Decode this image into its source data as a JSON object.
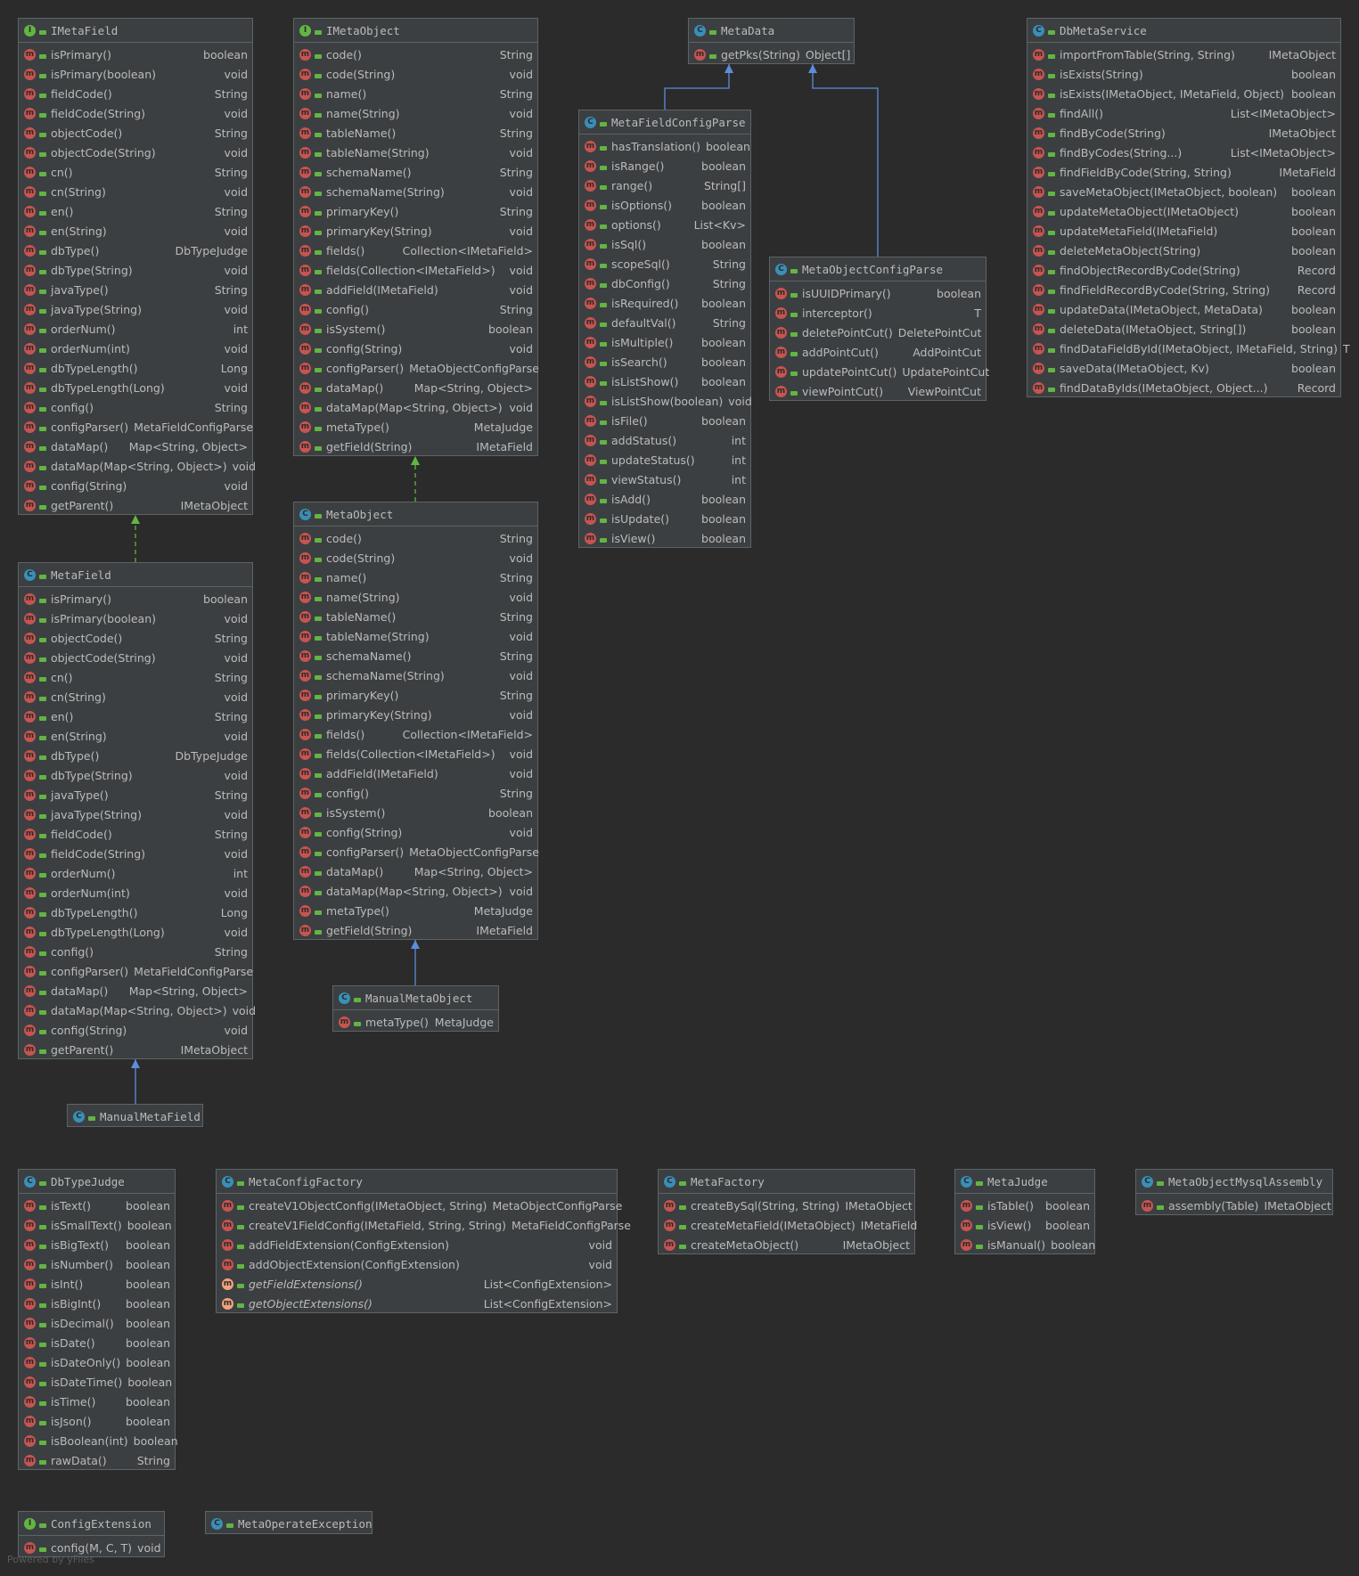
{
  "boxes": [
    {
      "id": "IMetaField",
      "kind": "i",
      "title": "IMetaField",
      "members": [
        [
          "isPrimary()",
          "boolean"
        ],
        [
          "isPrimary(boolean)",
          "void"
        ],
        [
          "fieldCode()",
          "String"
        ],
        [
          "fieldCode(String)",
          "void"
        ],
        [
          "objectCode()",
          "String"
        ],
        [
          "objectCode(String)",
          "void"
        ],
        [
          "cn()",
          "String"
        ],
        [
          "cn(String)",
          "void"
        ],
        [
          "en()",
          "String"
        ],
        [
          "en(String)",
          "void"
        ],
        [
          "dbType()",
          "DbTypeJudge"
        ],
        [
          "dbType(String)",
          "void"
        ],
        [
          "javaType()",
          "String"
        ],
        [
          "javaType(String)",
          "void"
        ],
        [
          "orderNum()",
          "int"
        ],
        [
          "orderNum(int)",
          "void"
        ],
        [
          "dbTypeLength()",
          "Long"
        ],
        [
          "dbTypeLength(Long)",
          "void"
        ],
        [
          "config()",
          "String"
        ],
        [
          "configParser()",
          "MetaFieldConfigParse"
        ],
        [
          "dataMap()",
          "Map<String, Object>"
        ],
        [
          "dataMap(Map<String, Object>)",
          "void"
        ],
        [
          "config(String)",
          "void"
        ],
        [
          "getParent()",
          "IMetaObject"
        ]
      ]
    },
    {
      "id": "IMetaObject",
      "kind": "i",
      "title": "IMetaObject",
      "members": [
        [
          "code()",
          "String"
        ],
        [
          "code(String)",
          "void"
        ],
        [
          "name()",
          "String"
        ],
        [
          "name(String)",
          "void"
        ],
        [
          "tableName()",
          "String"
        ],
        [
          "tableName(String)",
          "void"
        ],
        [
          "schemaName()",
          "String"
        ],
        [
          "schemaName(String)",
          "void"
        ],
        [
          "primaryKey()",
          "String"
        ],
        [
          "primaryKey(String)",
          "void"
        ],
        [
          "fields()",
          "Collection<IMetaField>"
        ],
        [
          "fields(Collection<IMetaField>)",
          "void"
        ],
        [
          "addField(IMetaField)",
          "void"
        ],
        [
          "config()",
          "String"
        ],
        [
          "isSystem()",
          "boolean"
        ],
        [
          "config(String)",
          "void"
        ],
        [
          "configParser()",
          "MetaObjectConfigParse"
        ],
        [
          "dataMap()",
          "Map<String, Object>"
        ],
        [
          "dataMap(Map<String, Object>)",
          "void"
        ],
        [
          "metaType()",
          "MetaJudge"
        ],
        [
          "getField(String)",
          "IMetaField"
        ]
      ]
    },
    {
      "id": "MetaData",
      "kind": "c",
      "title": "MetaData",
      "members": [
        [
          "getPks(String)",
          "Object[]"
        ]
      ]
    },
    {
      "id": "DbMetaService",
      "kind": "c",
      "title": "DbMetaService",
      "members": [
        [
          "importFromTable(String, String)",
          "IMetaObject"
        ],
        [
          "isExists(String)",
          "boolean"
        ],
        [
          "isExists(IMetaObject, IMetaField, Object)",
          "boolean"
        ],
        [
          "findAll()",
          "List<IMetaObject>"
        ],
        [
          "findByCode(String)",
          "IMetaObject"
        ],
        [
          "findByCodes(String...)",
          "List<IMetaObject>"
        ],
        [
          "findFieldByCode(String, String)",
          "IMetaField"
        ],
        [
          "saveMetaObject(IMetaObject, boolean)",
          "boolean"
        ],
        [
          "updateMetaObject(IMetaObject)",
          "boolean"
        ],
        [
          "updateMetaField(IMetaField)",
          "boolean"
        ],
        [
          "deleteMetaObject(String)",
          "boolean"
        ],
        [
          "findObjectRecordByCode(String)",
          "Record"
        ],
        [
          "findFieldRecordByCode(String, String)",
          "Record"
        ],
        [
          "updateData(IMetaObject, MetaData)",
          "boolean"
        ],
        [
          "deleteData(IMetaObject, String[])",
          "boolean"
        ],
        [
          "findDataFieldById(IMetaObject, IMetaField, String)",
          "T"
        ],
        [
          "saveData(IMetaObject, Kv)",
          "boolean"
        ],
        [
          "findDataByIds(IMetaObject, Object...)",
          "Record"
        ]
      ]
    },
    {
      "id": "MetaFieldConfigParse",
      "kind": "c",
      "title": "MetaFieldConfigParse",
      "members": [
        [
          "hasTranslation()",
          "boolean"
        ],
        [
          "isRange()",
          "boolean"
        ],
        [
          "range()",
          "String[]"
        ],
        [
          "isOptions()",
          "boolean"
        ],
        [
          "options()",
          "List<Kv>"
        ],
        [
          "isSql()",
          "boolean"
        ],
        [
          "scopeSql()",
          "String"
        ],
        [
          "dbConfig()",
          "String"
        ],
        [
          "isRequired()",
          "boolean"
        ],
        [
          "defaultVal()",
          "String"
        ],
        [
          "isMultiple()",
          "boolean"
        ],
        [
          "isSearch()",
          "boolean"
        ],
        [
          "isListShow()",
          "boolean"
        ],
        [
          "isListShow(boolean)",
          "void"
        ],
        [
          "isFile()",
          "boolean"
        ],
        [
          "addStatus()",
          "int"
        ],
        [
          "updateStatus()",
          "int"
        ],
        [
          "viewStatus()",
          "int"
        ],
        [
          "isAdd()",
          "boolean"
        ],
        [
          "isUpdate()",
          "boolean"
        ],
        [
          "isView()",
          "boolean"
        ]
      ]
    },
    {
      "id": "MetaObjectConfigParse",
      "kind": "c",
      "title": "MetaObjectConfigParse",
      "members": [
        [
          "isUUIDPrimary()",
          "boolean"
        ],
        [
          "interceptor()",
          "T"
        ],
        [
          "deletePointCut()",
          "DeletePointCut"
        ],
        [
          "addPointCut()",
          "AddPointCut"
        ],
        [
          "updatePointCut()",
          "UpdatePointCut"
        ],
        [
          "viewPointCut()",
          "ViewPointCut"
        ]
      ]
    },
    {
      "id": "MetaObject",
      "kind": "c",
      "title": "MetaObject",
      "members": [
        [
          "code()",
          "String"
        ],
        [
          "code(String)",
          "void"
        ],
        [
          "name()",
          "String"
        ],
        [
          "name(String)",
          "void"
        ],
        [
          "tableName()",
          "String"
        ],
        [
          "tableName(String)",
          "void"
        ],
        [
          "schemaName()",
          "String"
        ],
        [
          "schemaName(String)",
          "void"
        ],
        [
          "primaryKey()",
          "String"
        ],
        [
          "primaryKey(String)",
          "void"
        ],
        [
          "fields()",
          "Collection<IMetaField>"
        ],
        [
          "fields(Collection<IMetaField>)",
          "void"
        ],
        [
          "addField(IMetaField)",
          "void"
        ],
        [
          "config()",
          "String"
        ],
        [
          "isSystem()",
          "boolean"
        ],
        [
          "config(String)",
          "void"
        ],
        [
          "configParser()",
          "MetaObjectConfigParse"
        ],
        [
          "dataMap()",
          "Map<String, Object>"
        ],
        [
          "dataMap(Map<String, Object>)",
          "void"
        ],
        [
          "metaType()",
          "MetaJudge"
        ],
        [
          "getField(String)",
          "IMetaField"
        ]
      ]
    },
    {
      "id": "MetaField",
      "kind": "c",
      "title": "MetaField",
      "members": [
        [
          "isPrimary()",
          "boolean"
        ],
        [
          "isPrimary(boolean)",
          "void"
        ],
        [
          "objectCode()",
          "String"
        ],
        [
          "objectCode(String)",
          "void"
        ],
        [
          "cn()",
          "String"
        ],
        [
          "cn(String)",
          "void"
        ],
        [
          "en()",
          "String"
        ],
        [
          "en(String)",
          "void"
        ],
        [
          "dbType()",
          "DbTypeJudge"
        ],
        [
          "dbType(String)",
          "void"
        ],
        [
          "javaType()",
          "String"
        ],
        [
          "javaType(String)",
          "void"
        ],
        [
          "fieldCode()",
          "String"
        ],
        [
          "fieldCode(String)",
          "void"
        ],
        [
          "orderNum()",
          "int"
        ],
        [
          "orderNum(int)",
          "void"
        ],
        [
          "dbTypeLength()",
          "Long"
        ],
        [
          "dbTypeLength(Long)",
          "void"
        ],
        [
          "config()",
          "String"
        ],
        [
          "configParser()",
          "MetaFieldConfigParse"
        ],
        [
          "dataMap()",
          "Map<String, Object>"
        ],
        [
          "dataMap(Map<String, Object>)",
          "void"
        ],
        [
          "config(String)",
          "void"
        ],
        [
          "getParent()",
          "IMetaObject"
        ]
      ]
    },
    {
      "id": "ManualMetaObject",
      "kind": "c",
      "title": "ManualMetaObject",
      "members": [
        [
          "metaType()",
          "MetaJudge"
        ]
      ]
    },
    {
      "id": "ManualMetaField",
      "kind": "c",
      "title": "ManualMetaField",
      "members": []
    },
    {
      "id": "DbTypeJudge",
      "kind": "c",
      "title": "DbTypeJudge",
      "members": [
        [
          "isText()",
          "boolean"
        ],
        [
          "isSmallText()",
          "boolean"
        ],
        [
          "isBigText()",
          "boolean"
        ],
        [
          "isNumber()",
          "boolean"
        ],
        [
          "isInt()",
          "boolean"
        ],
        [
          "isBigInt()",
          "boolean"
        ],
        [
          "isDecimal()",
          "boolean"
        ],
        [
          "isDate()",
          "boolean"
        ],
        [
          "isDateOnly()",
          "boolean"
        ],
        [
          "isDateTime()",
          "boolean"
        ],
        [
          "isTime()",
          "boolean"
        ],
        [
          "isJson()",
          "boolean"
        ],
        [
          "isBoolean(int)",
          "boolean"
        ],
        [
          "rawData()",
          "String"
        ]
      ]
    },
    {
      "id": "MetaConfigFactory",
      "kind": "c",
      "title": "MetaConfigFactory",
      "members": [
        [
          "createV1ObjectConfig(IMetaObject, String)",
          "MetaObjectConfigParse"
        ],
        [
          "createV1FieldConfig(IMetaField, String, String)",
          "MetaFieldConfigParse"
        ],
        [
          "addFieldExtension(ConfigExtension)",
          "void"
        ],
        [
          "addObjectExtension(ConfigExtension)",
          "void"
        ],
        [
          "getFieldExtensions()",
          "List<ConfigExtension>",
          "static"
        ],
        [
          "getObjectExtensions()",
          "List<ConfigExtension>",
          "static"
        ]
      ]
    },
    {
      "id": "MetaFactory",
      "kind": "c",
      "title": "MetaFactory",
      "members": [
        [
          "createBySql(String, String)",
          "IMetaObject"
        ],
        [
          "createMetaField(IMetaObject)",
          "IMetaField"
        ],
        [
          "createMetaObject()",
          "IMetaObject"
        ]
      ]
    },
    {
      "id": "MetaJudge",
      "kind": "c",
      "title": "MetaJudge",
      "members": [
        [
          "isTable()",
          "boolean"
        ],
        [
          "isView()",
          "boolean"
        ],
        [
          "isManual()",
          "boolean"
        ]
      ]
    },
    {
      "id": "MetaObjectMysqlAssembly",
      "kind": "c",
      "title": "MetaObjectMysqlAssembly",
      "members": [
        [
          "assembly(Table)",
          "IMetaObject"
        ]
      ]
    },
    {
      "id": "ConfigExtension",
      "kind": "i",
      "title": "ConfigExtension",
      "members": [
        [
          "config(M, C, T)",
          "void"
        ]
      ]
    },
    {
      "id": "MetaOperateException",
      "kind": "c",
      "title": "MetaOperateException",
      "members": []
    }
  ],
  "footer": "Powered by yFiles",
  "colors": {
    "implements": "#62b543",
    "extends": "#5c8dda"
  }
}
